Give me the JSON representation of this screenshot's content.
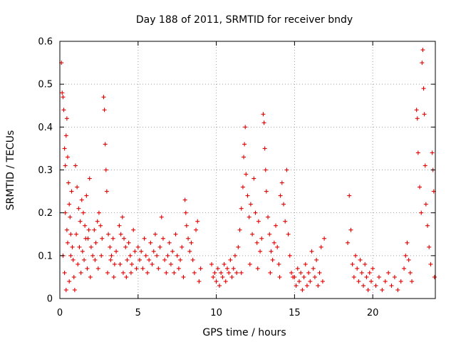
{
  "chart_data": {
    "type": "scatter",
    "title": "Day 188 of 2011, SRMTID for receiver bndy",
    "xlabel": "GPS time / hours",
    "ylabel": "SRMTID / TECUs",
    "xlim": [
      0,
      24
    ],
    "ylim": [
      0,
      0.6
    ],
    "xticks": [
      0,
      5,
      10,
      15,
      20
    ],
    "yticks": [
      0,
      0.1,
      0.2,
      0.3,
      0.4,
      0.5,
      0.6
    ],
    "xtick_labels": [
      "0",
      "5",
      "10",
      "15",
      "20"
    ],
    "ytick_labels": [
      "0",
      "0.1",
      "0.2",
      "0.3",
      "0.4",
      "0.5",
      "0.6"
    ],
    "grid": true,
    "marker": "+",
    "color": "#e00000",
    "series": [
      {
        "name": "SRMTID",
        "points": [
          [
            0.1,
            0.55
          ],
          [
            0.15,
            0.48
          ],
          [
            0.2,
            0.47
          ],
          [
            0.25,
            0.44
          ],
          [
            0.3,
            0.35
          ],
          [
            0.35,
            0.31
          ],
          [
            0.4,
            0.38
          ],
          [
            0.45,
            0.42
          ],
          [
            0.5,
            0.33
          ],
          [
            0.55,
            0.27
          ],
          [
            0.6,
            0.22
          ],
          [
            0.65,
            0.19
          ],
          [
            0.7,
            0.15
          ],
          [
            0.75,
            0.25
          ],
          [
            0.8,
            0.12
          ],
          [
            0.85,
            0.09
          ],
          [
            0.9,
            0.05
          ],
          [
            0.2,
            0.1
          ],
          [
            0.3,
            0.06
          ],
          [
            0.4,
            0.02
          ],
          [
            0.6,
            0.04
          ],
          [
            0.5,
            0.13
          ],
          [
            0.35,
            0.2
          ],
          [
            0.45,
            0.16
          ],
          [
            0.7,
            0.1
          ],
          [
            0.95,
            0.02
          ],
          [
            1.0,
            0.31
          ],
          [
            1.1,
            0.26
          ],
          [
            1.2,
            0.21
          ],
          [
            1.3,
            0.18
          ],
          [
            1.4,
            0.23
          ],
          [
            1.5,
            0.2
          ],
          [
            1.6,
            0.17
          ],
          [
            1.7,
            0.24
          ],
          [
            1.8,
            0.14
          ],
          [
            1.9,
            0.28
          ],
          [
            2.0,
            0.12
          ],
          [
            2.1,
            0.1
          ],
          [
            1.05,
            0.15
          ],
          [
            1.15,
            0.08
          ],
          [
            1.25,
            0.12
          ],
          [
            1.35,
            0.06
          ],
          [
            1.45,
            0.11
          ],
          [
            1.55,
            0.09
          ],
          [
            1.65,
            0.14
          ],
          [
            1.75,
            0.07
          ],
          [
            1.85,
            0.16
          ],
          [
            1.95,
            0.05
          ],
          [
            2.2,
            0.16
          ],
          [
            2.3,
            0.13
          ],
          [
            2.4,
            0.18
          ],
          [
            2.5,
            0.2
          ],
          [
            2.6,
            0.17
          ],
          [
            2.7,
            0.14
          ],
          [
            2.8,
            0.47
          ],
          [
            2.85,
            0.44
          ],
          [
            2.9,
            0.36
          ],
          [
            2.95,
            0.3
          ],
          [
            3.0,
            0.25
          ],
          [
            3.1,
            0.15
          ],
          [
            3.2,
            0.12
          ],
          [
            3.3,
            0.1
          ],
          [
            3.4,
            0.14
          ],
          [
            3.5,
            0.08
          ],
          [
            3.6,
            0.11
          ],
          [
            2.25,
            0.09
          ],
          [
            2.45,
            0.07
          ],
          [
            2.65,
            0.1
          ],
          [
            3.05,
            0.06
          ],
          [
            3.25,
            0.09
          ],
          [
            3.45,
            0.05
          ],
          [
            3.8,
            0.17
          ],
          [
            3.9,
            0.15
          ],
          [
            4.0,
            0.19
          ],
          [
            4.1,
            0.14
          ],
          [
            4.2,
            0.12
          ],
          [
            4.3,
            0.09
          ],
          [
            4.4,
            0.13
          ],
          [
            4.5,
            0.1
          ],
          [
            4.6,
            0.08
          ],
          [
            4.7,
            0.16
          ],
          [
            4.8,
            0.11
          ],
          [
            4.9,
            0.07
          ],
          [
            3.85,
            0.08
          ],
          [
            4.05,
            0.06
          ],
          [
            4.25,
            0.05
          ],
          [
            4.55,
            0.06
          ],
          [
            5.0,
            0.12
          ],
          [
            5.1,
            0.09
          ],
          [
            5.2,
            0.11
          ],
          [
            5.3,
            0.07
          ],
          [
            5.4,
            0.14
          ],
          [
            5.5,
            0.1
          ],
          [
            5.6,
            0.06
          ],
          [
            5.7,
            0.09
          ],
          [
            5.8,
            0.13
          ],
          [
            5.9,
            0.08
          ],
          [
            6.0,
            0.11
          ],
          [
            6.1,
            0.15
          ],
          [
            6.2,
            0.1
          ],
          [
            6.3,
            0.07
          ],
          [
            6.4,
            0.12
          ],
          [
            6.5,
            0.19
          ],
          [
            6.6,
            0.14
          ],
          [
            6.7,
            0.09
          ],
          [
            6.8,
            0.06
          ],
          [
            6.9,
            0.1
          ],
          [
            7.0,
            0.13
          ],
          [
            7.1,
            0.08
          ],
          [
            7.2,
            0.11
          ],
          [
            7.3,
            0.06
          ],
          [
            7.4,
            0.15
          ],
          [
            7.5,
            0.1
          ],
          [
            7.6,
            0.07
          ],
          [
            7.7,
            0.09
          ],
          [
            7.8,
            0.12
          ],
          [
            7.9,
            0.05
          ],
          [
            8.0,
            0.23
          ],
          [
            8.05,
            0.2
          ],
          [
            8.1,
            0.17
          ],
          [
            8.2,
            0.14
          ],
          [
            8.3,
            0.11
          ],
          [
            8.4,
            0.13
          ],
          [
            8.5,
            0.09
          ],
          [
            8.6,
            0.06
          ],
          [
            8.7,
            0.16
          ],
          [
            8.8,
            0.18
          ],
          [
            8.9,
            0.04
          ],
          [
            9.0,
            0.07
          ],
          [
            9.7,
            0.08
          ],
          [
            9.8,
            0.05
          ],
          [
            9.9,
            0.06
          ],
          [
            10.0,
            0.04
          ],
          [
            10.1,
            0.07
          ],
          [
            10.2,
            0.03
          ],
          [
            10.3,
            0.06
          ],
          [
            10.4,
            0.05
          ],
          [
            10.5,
            0.08
          ],
          [
            10.6,
            0.04
          ],
          [
            10.7,
            0.07
          ],
          [
            10.8,
            0.06
          ],
          [
            10.9,
            0.09
          ],
          [
            11.0,
            0.05
          ],
          [
            11.1,
            0.07
          ],
          [
            11.2,
            0.1
          ],
          [
            11.3,
            0.06
          ],
          [
            11.4,
            0.12
          ],
          [
            11.5,
            0.16
          ],
          [
            11.6,
            0.21
          ],
          [
            11.7,
            0.26
          ],
          [
            11.75,
            0.33
          ],
          [
            11.8,
            0.36
          ],
          [
            11.85,
            0.4
          ],
          [
            11.9,
            0.29
          ],
          [
            12.0,
            0.24
          ],
          [
            12.1,
            0.19
          ],
          [
            12.2,
            0.22
          ],
          [
            12.3,
            0.15
          ],
          [
            12.4,
            0.28
          ],
          [
            12.5,
            0.2
          ],
          [
            12.6,
            0.13
          ],
          [
            12.7,
            0.18
          ],
          [
            12.8,
            0.11
          ],
          [
            12.9,
            0.14
          ],
          [
            13.0,
            0.43
          ],
          [
            13.05,
            0.41
          ],
          [
            13.1,
            0.35
          ],
          [
            13.15,
            0.3
          ],
          [
            13.2,
            0.25
          ],
          [
            13.3,
            0.19
          ],
          [
            13.4,
            0.15
          ],
          [
            13.5,
            0.11
          ],
          [
            13.6,
            0.09
          ],
          [
            13.7,
            0.13
          ],
          [
            13.8,
            0.17
          ],
          [
            13.9,
            0.12
          ],
          [
            14.0,
            0.08
          ],
          [
            14.1,
            0.24
          ],
          [
            14.2,
            0.27
          ],
          [
            14.3,
            0.22
          ],
          [
            14.4,
            0.18
          ],
          [
            14.5,
            0.3
          ],
          [
            14.6,
            0.15
          ],
          [
            14.7,
            0.1
          ],
          [
            14.8,
            0.06
          ],
          [
            14.9,
            0.05
          ],
          [
            11.6,
            0.06
          ],
          [
            12.15,
            0.08
          ],
          [
            12.65,
            0.07
          ],
          [
            13.45,
            0.06
          ],
          [
            14.05,
            0.05
          ],
          [
            15.0,
            0.05
          ],
          [
            15.1,
            0.03
          ],
          [
            15.2,
            0.07
          ],
          [
            15.3,
            0.04
          ],
          [
            15.4,
            0.06
          ],
          [
            15.5,
            0.02
          ],
          [
            15.6,
            0.05
          ],
          [
            15.7,
            0.08
          ],
          [
            15.8,
            0.03
          ],
          [
            15.9,
            0.06
          ],
          [
            16.0,
            0.04
          ],
          [
            16.1,
            0.11
          ],
          [
            16.2,
            0.07
          ],
          [
            16.3,
            0.05
          ],
          [
            16.4,
            0.09
          ],
          [
            16.5,
            0.03
          ],
          [
            16.6,
            0.06
          ],
          [
            16.7,
            0.12
          ],
          [
            16.8,
            0.04
          ],
          [
            16.9,
            0.14
          ],
          [
            18.4,
            0.13
          ],
          [
            18.5,
            0.24
          ],
          [
            18.6,
            0.16
          ],
          [
            18.7,
            0.08
          ],
          [
            18.8,
            0.05
          ],
          [
            18.9,
            0.1
          ],
          [
            19.0,
            0.07
          ],
          [
            19.1,
            0.04
          ],
          [
            19.2,
            0.09
          ],
          [
            19.3,
            0.06
          ],
          [
            19.4,
            0.03
          ],
          [
            19.5,
            0.08
          ],
          [
            19.6,
            0.05
          ],
          [
            19.7,
            0.02
          ],
          [
            19.8,
            0.06
          ],
          [
            19.9,
            0.04
          ],
          [
            20.0,
            0.07
          ],
          [
            20.2,
            0.03
          ],
          [
            20.4,
            0.05
          ],
          [
            20.6,
            0.02
          ],
          [
            20.8,
            0.04
          ],
          [
            21.0,
            0.06
          ],
          [
            21.2,
            0.03
          ],
          [
            21.4,
            0.05
          ],
          [
            21.6,
            0.02
          ],
          [
            21.8,
            0.04
          ],
          [
            22.0,
            0.07
          ],
          [
            22.1,
            0.1
          ],
          [
            22.2,
            0.13
          ],
          [
            22.3,
            0.09
          ],
          [
            22.4,
            0.06
          ],
          [
            22.5,
            0.04
          ],
          [
            22.8,
            0.44
          ],
          [
            22.85,
            0.42
          ],
          [
            22.9,
            0.34
          ],
          [
            23.0,
            0.26
          ],
          [
            23.1,
            0.2
          ],
          [
            23.15,
            0.55
          ],
          [
            23.2,
            0.58
          ],
          [
            23.25,
            0.49
          ],
          [
            23.3,
            0.43
          ],
          [
            23.35,
            0.31
          ],
          [
            23.4,
            0.22
          ],
          [
            23.5,
            0.17
          ],
          [
            23.6,
            0.12
          ],
          [
            23.7,
            0.08
          ],
          [
            23.8,
            0.34
          ],
          [
            23.85,
            0.3
          ],
          [
            23.9,
            0.25
          ],
          [
            23.95,
            0.05
          ]
        ]
      }
    ]
  }
}
